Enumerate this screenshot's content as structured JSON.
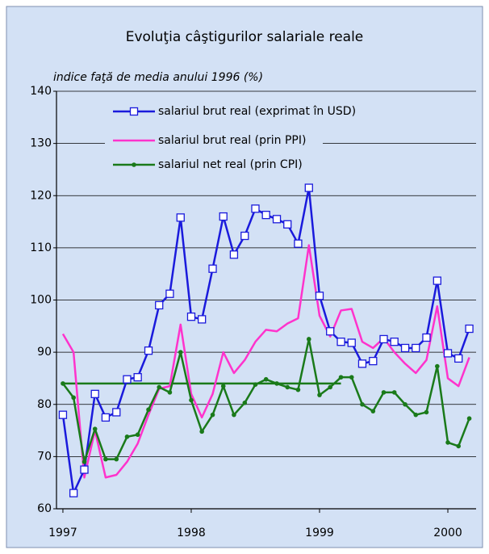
{
  "chart_data": {
    "type": "line",
    "title": "Evoluţia câştigurilor salariale reale",
    "y_label": "indice faţă de media anului 1996 (%)",
    "x": [
      1997,
      1997.083,
      1997.167,
      1997.25,
      1997.333,
      1997.417,
      1997.5,
      1997.583,
      1997.667,
      1997.75,
      1997.833,
      1997.917,
      1998,
      1998.083,
      1998.167,
      1998.25,
      1998.333,
      1998.417,
      1998.5,
      1998.583,
      1998.667,
      1998.75,
      1998.833,
      1998.917,
      1999,
      1999.083,
      1999.167,
      1999.25,
      1999.333,
      1999.417,
      1999.5,
      1999.583,
      1999.667,
      1999.75,
      1999.833,
      1999.917,
      2000,
      2000.083,
      2000.167
    ],
    "series": [
      {
        "name": "salariul brut real (exprimat în USD)",
        "color": "#1a1adc",
        "marker": "square",
        "values": [
          78,
          63,
          67.5,
          82,
          77.5,
          78.5,
          84.8,
          85.2,
          90.3,
          99,
          101.2,
          115.8,
          96.8,
          96.3,
          106,
          116,
          108.7,
          112.3,
          117.5,
          116.3,
          115.5,
          114.5,
          110.8,
          121.5,
          100.8,
          94,
          92,
          91.8,
          87.8,
          88.3,
          92.5,
          92,
          90.8,
          90.8,
          92.8,
          103.7,
          89.8,
          88.8,
          94.5
        ]
      },
      {
        "name": "salariul brut real (prin PPI)",
        "color": "#ff33cc",
        "marker": null,
        "values": [
          93.5,
          90,
          66,
          75,
          66,
          66.5,
          69,
          72.5,
          78,
          83,
          83.5,
          95.3,
          82,
          77.5,
          82,
          90,
          86,
          88.5,
          92,
          94.3,
          94,
          95.5,
          96.5,
          110.5,
          97,
          93,
          98,
          98.3,
          92,
          90.8,
          92.7,
          90,
          87.8,
          86,
          88.5,
          98.8,
          85,
          83.5,
          89
        ]
      },
      {
        "name": "salariul net real (prin CPI)",
        "color": "#1a7a1a",
        "marker": "circle",
        "values": [
          84,
          81.3,
          69,
          75.3,
          69.5,
          69.5,
          73.8,
          74.2,
          79,
          83.3,
          82.3,
          90,
          80.8,
          74.8,
          78,
          83.5,
          78,
          80.3,
          83.8,
          84.8,
          84,
          83.3,
          82.8,
          92.5,
          81.8,
          83.3,
          85.2,
          85.2,
          80,
          78.7,
          82.3,
          82.3,
          80,
          78,
          78.5,
          87.3,
          72.7,
          72,
          77.3
        ]
      }
    ],
    "reference_line": {
      "y": 84,
      "x": [
        1997,
        1999.167
      ],
      "color": "#1a7a1a"
    },
    "xlim": [
      1996.95,
      2000.22
    ],
    "xticks": [
      1997,
      1998,
      1999,
      2000
    ],
    "ylim": [
      60,
      140
    ],
    "yticks": [
      60,
      70,
      80,
      90,
      100,
      110,
      120,
      130,
      140
    ],
    "grid": true,
    "legend": "top-left",
    "background": "#d3e1f5"
  }
}
